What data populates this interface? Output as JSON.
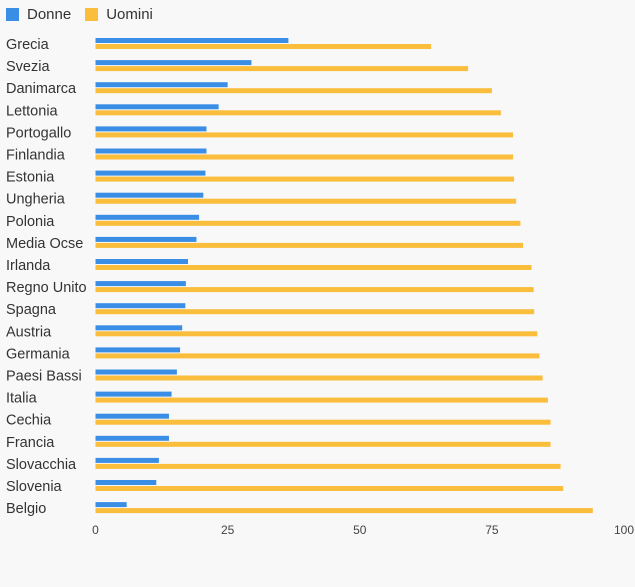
{
  "legend": {
    "series_a_label": "Donne",
    "series_b_label": "Uomini"
  },
  "colors": {
    "donne": "#3b8ee6",
    "uomini": "#fbbd3c",
    "background": "#f8f8f8",
    "text": "#333333"
  },
  "chart_data": {
    "type": "bar",
    "orientation": "horizontal",
    "categories": [
      "Grecia",
      "Svezia",
      "Danimarca",
      "Lettonia",
      "Portogallo",
      "Finlandia",
      "Estonia",
      "Ungheria",
      "Polonia",
      "Media Ocse",
      "Irlanda",
      "Regno Unito",
      "Spagna",
      "Austria",
      "Germania",
      "Paesi Bassi",
      "Italia",
      "Cechia",
      "Francia",
      "Slovacchia",
      "Slovenia",
      "Belgio"
    ],
    "series": [
      {
        "name": "Donne",
        "values": [
          36.5,
          29.5,
          25,
          23.3,
          21,
          21,
          20.8,
          20.4,
          19.6,
          19.1,
          17.5,
          17.1,
          17,
          16.4,
          16,
          15.4,
          14.4,
          13.9,
          13.9,
          12,
          11.5,
          5.9
        ]
      },
      {
        "name": "Uomini",
        "values": [
          63.5,
          70.5,
          75,
          76.7,
          79,
          79,
          79.2,
          79.6,
          80.4,
          80.9,
          82.5,
          82.9,
          83,
          83.6,
          84,
          84.6,
          85.6,
          86.1,
          86.1,
          88,
          88.5,
          94.1
        ]
      }
    ],
    "xlim": [
      0,
      100
    ],
    "xticks": [
      0,
      25,
      50,
      75,
      100
    ],
    "grid": false,
    "legend_position": "top-left",
    "title": "",
    "xlabel": "",
    "ylabel": ""
  }
}
